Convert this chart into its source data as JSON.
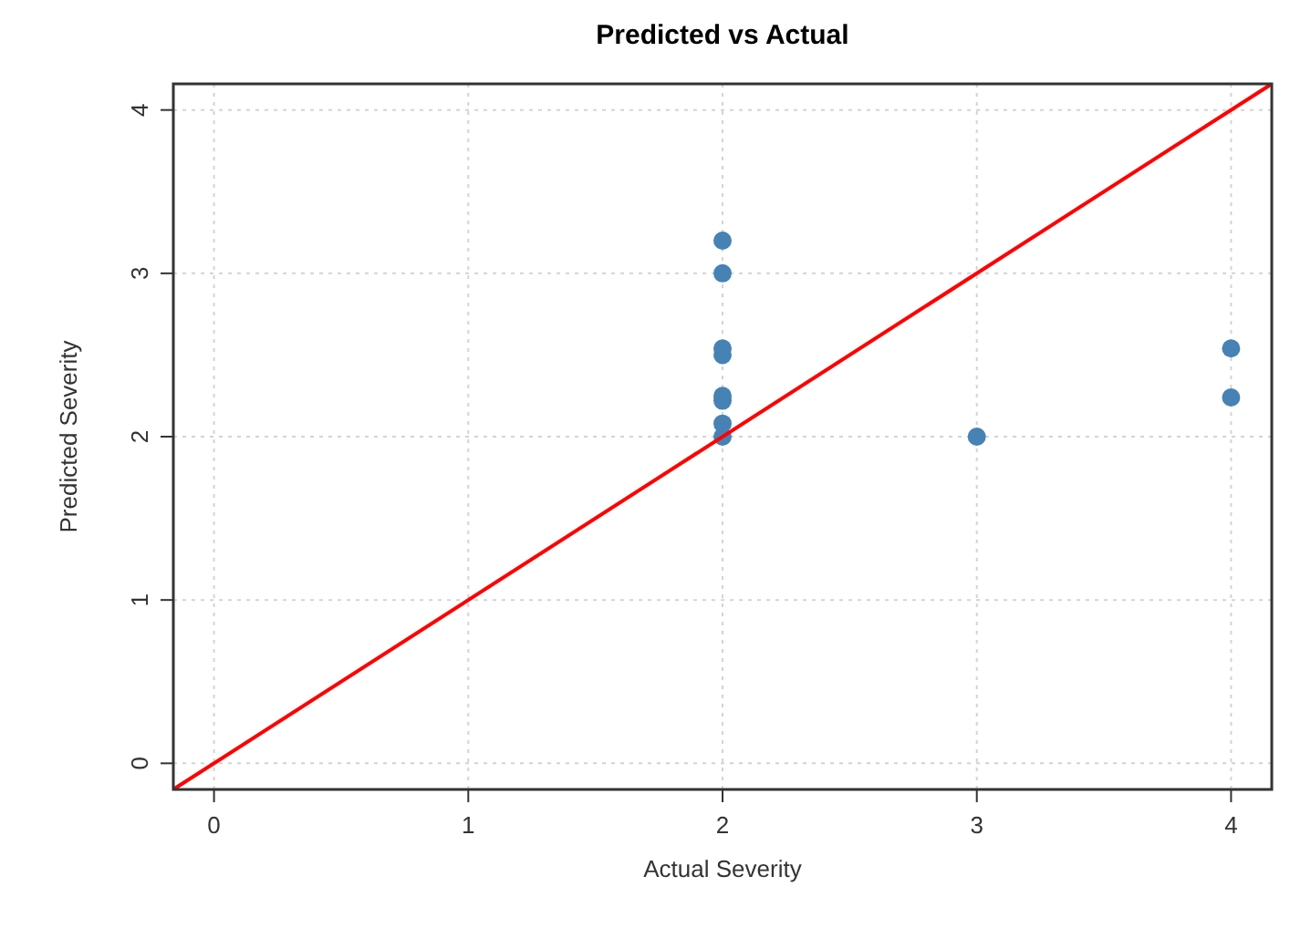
{
  "chart_data": {
    "type": "scatter",
    "title": "Predicted vs Actual",
    "xlabel": "Actual Severity",
    "ylabel": "Predicted Severity",
    "xlim": [
      -0.16,
      4.16
    ],
    "ylim": [
      -0.16,
      4.16
    ],
    "xticks": [
      0,
      1,
      2,
      3,
      4
    ],
    "yticks": [
      0,
      1,
      2,
      3,
      4
    ],
    "grid": true,
    "series": [
      {
        "marker": "circle",
        "color": "#4682b4",
        "x": [
          2,
          2,
          2,
          2,
          2,
          2,
          2,
          2,
          3,
          4,
          4
        ],
        "values": [
          3.2,
          3.0,
          2.54,
          2.5,
          2.25,
          2.22,
          2.08,
          2.0,
          2.0,
          2.54,
          2.24
        ]
      },
      {
        "type": "line",
        "color": "#ff0000",
        "x": [
          -0.16,
          4.16
        ],
        "values": [
          -0.16,
          4.16
        ],
        "line_style": "solid"
      }
    ]
  }
}
